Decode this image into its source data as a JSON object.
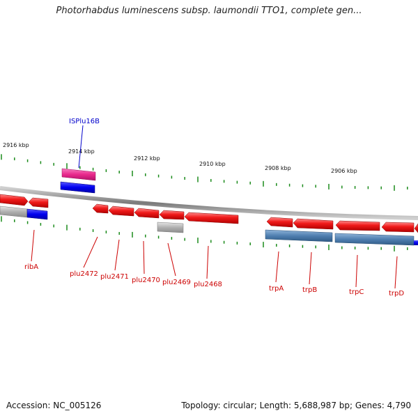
{
  "title": "Photorhabdus luminescens subsp. laumondii TTO1, complete gen...",
  "footer": {
    "accession": "Accession: NC_005126",
    "summary": "Topology: circular; Length: 5,688,987 bp; Genes: 4,790"
  },
  "scale_labels": [
    "2916 kbp",
    "2914 kbp",
    "2912 kbp",
    "2910 kbp",
    "2908 kbp",
    "2906 kbp"
  ],
  "gene_labels": [
    "ribA",
    "plu2472",
    "plu2471",
    "plu2470",
    "plu2469",
    "plu2468",
    "trpA",
    "trpB",
    "trpC",
    "trpD"
  ],
  "feature_labels": [
    "ISPlu16B"
  ],
  "colors": {
    "cds": "#ee1111",
    "cds_light": "#ff7777",
    "mobile_element": "#e8288c",
    "blue_feature": "#0000ee",
    "gray_feature": "#aaaaaa",
    "steelblue_feature": "#4f7fb0",
    "backbone": "#888888",
    "tick": "#1a8a1a",
    "gene_label": "#cc0000",
    "feature_label": "#0000cc"
  }
}
